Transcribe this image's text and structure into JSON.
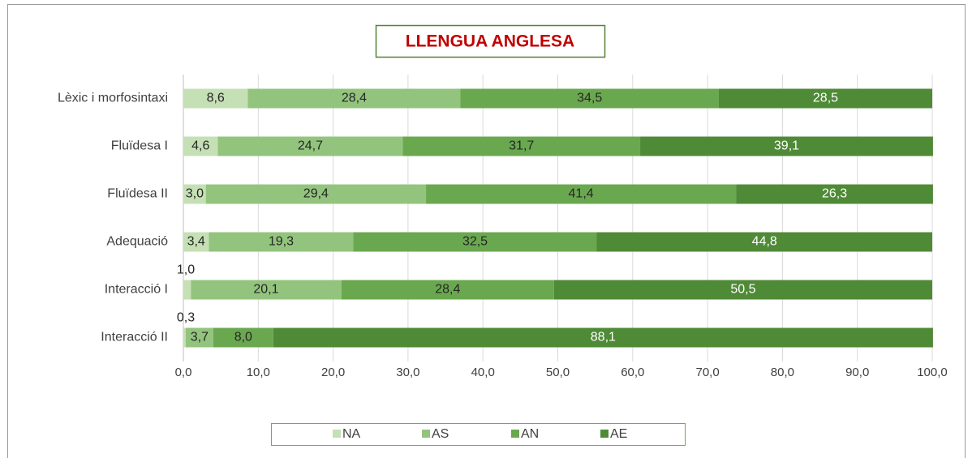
{
  "chart_data": {
    "type": "stacked-bar-horizontal",
    "title": "LLENGUA ANGLESA",
    "categories": [
      "Lèxic i morfosintaxi",
      "Fluïdesa I",
      "Fluïdesa II",
      "Adequació",
      "Interacció I",
      "Interacció II"
    ],
    "series": [
      {
        "name": "NA",
        "color": "#c5e0b4",
        "values": [
          8.6,
          4.6,
          3.0,
          3.4,
          1.0,
          0.3
        ],
        "value_labels": [
          "8,6",
          "4,6",
          "3,0",
          "3,4",
          "1,0",
          "0,3"
        ]
      },
      {
        "name": "AS",
        "color": "#93c47d",
        "values": [
          28.4,
          24.7,
          29.4,
          19.3,
          20.1,
          3.7
        ],
        "value_labels": [
          "28,4",
          "24,7",
          "29,4",
          "19,3",
          "20,1",
          "3,7"
        ]
      },
      {
        "name": "AN",
        "color": "#6aa84f",
        "values": [
          34.5,
          31.7,
          41.4,
          32.5,
          28.4,
          8.0
        ],
        "value_labels": [
          "34,5",
          "31,7",
          "41,4",
          "32,5",
          "28,4",
          "8,0"
        ]
      },
      {
        "name": "AE",
        "color": "#4f8a37",
        "values": [
          28.5,
          39.1,
          26.3,
          44.8,
          50.5,
          88.1
        ],
        "value_labels": [
          "28,5",
          "39,1",
          "26,3",
          "44,8",
          "50,5",
          "88,1"
        ]
      }
    ],
    "xlim": [
      0,
      100
    ],
    "xticks": [
      {
        "value": 0,
        "label": "0,0"
      },
      {
        "value": 10,
        "label": "10,0"
      },
      {
        "value": 20,
        "label": "20,0"
      },
      {
        "value": 30,
        "label": "30,0"
      },
      {
        "value": 40,
        "label": "40,0"
      },
      {
        "value": 50,
        "label": "50,0"
      },
      {
        "value": 60,
        "label": "60,0"
      },
      {
        "value": 70,
        "label": "70,0"
      },
      {
        "value": 80,
        "label": "80,0"
      },
      {
        "value": 90,
        "label": "90,0"
      },
      {
        "value": 100,
        "label": "100,0"
      }
    ],
    "grid": true,
    "legend": "bottom"
  }
}
